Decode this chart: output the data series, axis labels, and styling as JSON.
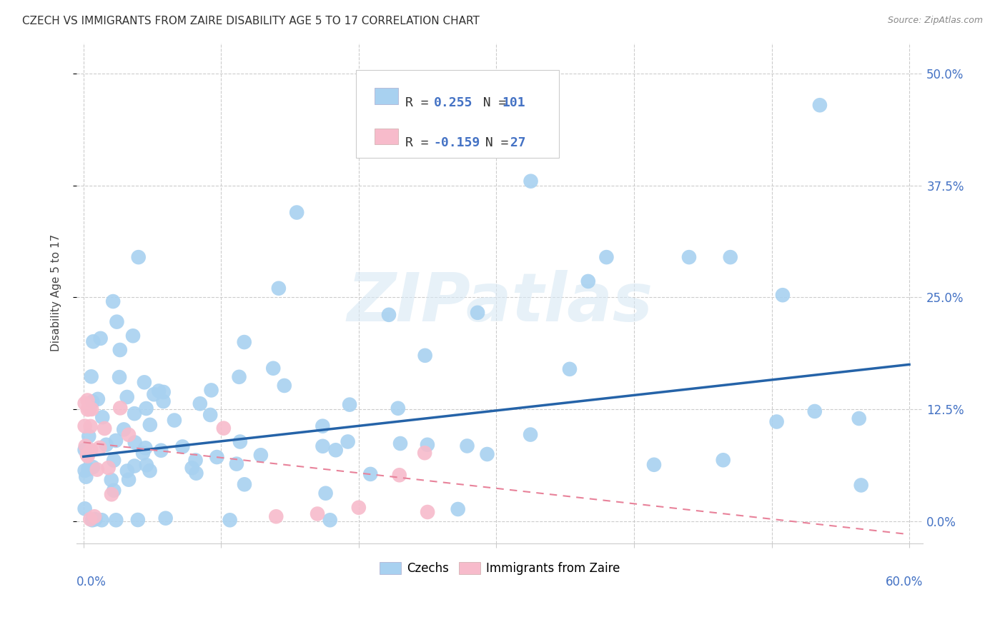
{
  "title": "CZECH VS IMMIGRANTS FROM ZAIRE DISABILITY AGE 5 TO 17 CORRELATION CHART",
  "source": "Source: ZipAtlas.com",
  "ylabel": "Disability Age 5 to 17",
  "ytick_labels": [
    "0.0%",
    "12.5%",
    "25.0%",
    "37.5%",
    "50.0%"
  ],
  "ytick_values": [
    0.0,
    0.125,
    0.25,
    0.375,
    0.5
  ],
  "xlim": [
    -0.005,
    0.61
  ],
  "ylim": [
    -0.025,
    0.535
  ],
  "czech_R": 0.255,
  "czech_N": 101,
  "zaire_R": -0.159,
  "zaire_N": 27,
  "czech_color": "#A8D1F0",
  "zaire_color": "#F7BBCB",
  "czech_line_color": "#2563A8",
  "zaire_line_color": "#E8829A",
  "background_color": "#FFFFFF",
  "watermark_text": "ZIPatlas",
  "legend_label1": "Czechs",
  "legend_label2": "Immigrants from Zaire",
  "czech_line_x0": 0.0,
  "czech_line_y0": 0.072,
  "czech_line_x1": 0.6,
  "czech_line_y1": 0.175,
  "zaire_line_x0": 0.0,
  "zaire_line_y0": 0.088,
  "zaire_line_x1": 0.6,
  "zaire_line_y1": -0.015
}
